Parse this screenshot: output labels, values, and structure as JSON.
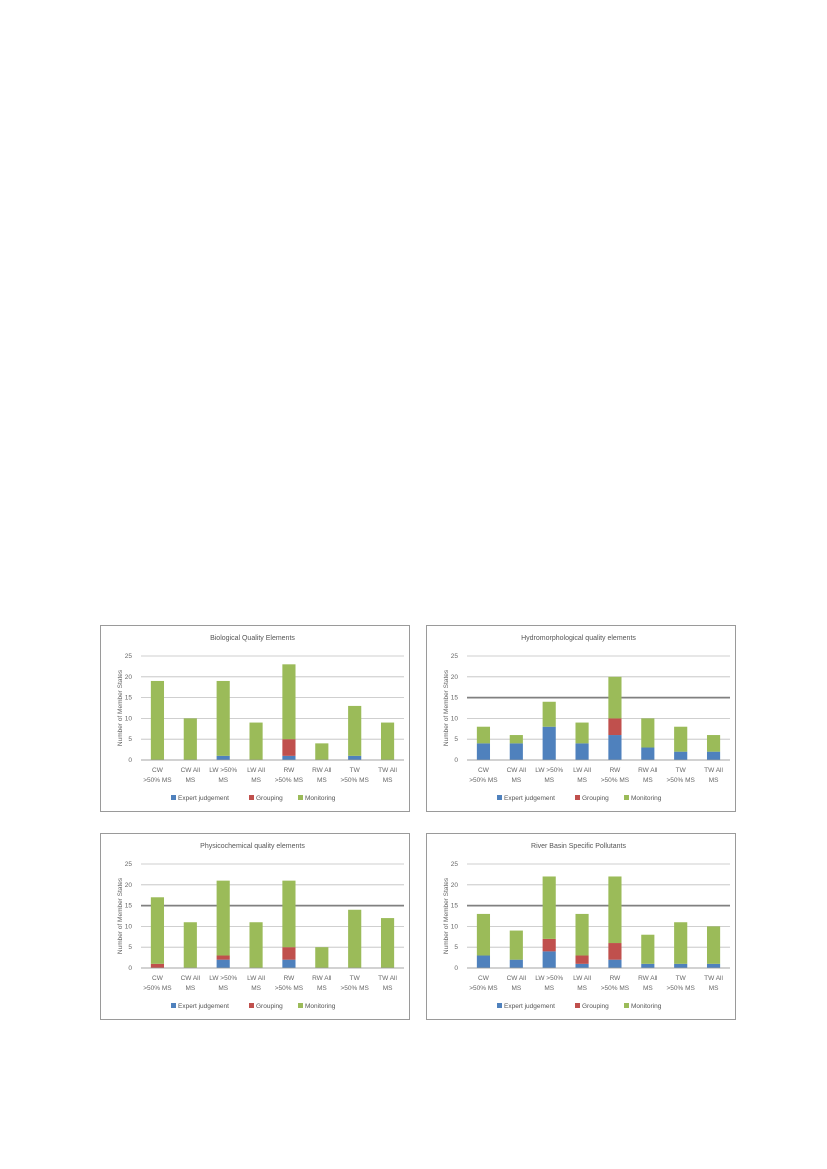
{
  "colors": {
    "expert": "#4f81bd",
    "grouping": "#c0504d",
    "monitoring": "#9bbb59",
    "grid": "#bfbfbf",
    "threshold": "#808080"
  },
  "chart_data": [
    {
      "type": "bar",
      "stacked": true,
      "title": "Biological Quality Elements",
      "ylabel": "Number of Member States",
      "ylim": [
        0,
        25
      ],
      "yticks": [
        0,
        5,
        10,
        15,
        20,
        25
      ],
      "threshold_line": null,
      "categories": [
        [
          "CW",
          ">50% MS"
        ],
        [
          "CW All",
          "MS"
        ],
        [
          "LW >50%",
          "MS"
        ],
        [
          "LW All",
          "MS"
        ],
        [
          "RW",
          ">50% MS"
        ],
        [
          "RW All",
          "MS"
        ],
        [
          "TW",
          ">50% MS"
        ],
        [
          "TW All",
          "MS"
        ]
      ],
      "series": [
        {
          "name": "Expert judgement",
          "values": [
            0,
            0,
            1,
            0,
            1,
            0,
            1,
            0
          ]
        },
        {
          "name": "Grouping",
          "values": [
            0,
            0,
            0,
            0,
            4,
            0,
            0,
            0
          ]
        },
        {
          "name": "Monitoring",
          "values": [
            19,
            10,
            18,
            9,
            18,
            4,
            12,
            9
          ]
        }
      ],
      "legend": "bottom"
    },
    {
      "type": "bar",
      "stacked": true,
      "title": "Hydromorphological quality elements",
      "ylabel": "Number of Member States",
      "ylim": [
        0,
        25
      ],
      "yticks": [
        0,
        5,
        10,
        15,
        20,
        25
      ],
      "threshold_line": 15,
      "categories": [
        [
          "CW",
          ">50% MS"
        ],
        [
          "CW All",
          "MS"
        ],
        [
          "LW >50%",
          "MS"
        ],
        [
          "LW All",
          "MS"
        ],
        [
          "RW",
          ">50% MS"
        ],
        [
          "RW All",
          "MS"
        ],
        [
          "TW",
          ">50% MS"
        ],
        [
          "TW All",
          "MS"
        ]
      ],
      "series": [
        {
          "name": "Expert judgement",
          "values": [
            4,
            4,
            8,
            4,
            6,
            3,
            2,
            2
          ]
        },
        {
          "name": "Grouping",
          "values": [
            0,
            0,
            0,
            0,
            4,
            0,
            0,
            0
          ]
        },
        {
          "name": "Monitoring",
          "values": [
            4,
            2,
            6,
            5,
            10,
            7,
            6,
            4
          ]
        }
      ],
      "legend": "bottom"
    },
    {
      "type": "bar",
      "stacked": true,
      "title": "Physicochemical quality elements",
      "ylabel": "Number of Member States",
      "ylim": [
        0,
        25
      ],
      "yticks": [
        0,
        5,
        10,
        15,
        20,
        25
      ],
      "threshold_line": 15,
      "categories": [
        [
          "CW",
          ">50% MS"
        ],
        [
          "CW All",
          "MS"
        ],
        [
          "LW >50%",
          "MS"
        ],
        [
          "LW All",
          "MS"
        ],
        [
          "RW",
          ">50% MS"
        ],
        [
          "RW All",
          "MS"
        ],
        [
          "TW",
          ">50% MS"
        ],
        [
          "TW All",
          "MS"
        ]
      ],
      "series": [
        {
          "name": "Expert judgement",
          "values": [
            0,
            0,
            2,
            0,
            2,
            0,
            0,
            0
          ]
        },
        {
          "name": "Grouping",
          "values": [
            1,
            0,
            1,
            0,
            3,
            0,
            0,
            0
          ]
        },
        {
          "name": "Monitoring",
          "values": [
            16,
            11,
            18,
            11,
            16,
            5,
            14,
            12
          ]
        }
      ],
      "legend": "bottom"
    },
    {
      "type": "bar",
      "stacked": true,
      "title": "River Basin Specific Pollutants",
      "ylabel": "Number of Member States",
      "ylim": [
        0,
        25
      ],
      "yticks": [
        0,
        5,
        10,
        15,
        20,
        25
      ],
      "threshold_line": 15,
      "categories": [
        [
          "CW",
          ">50% MS"
        ],
        [
          "CW All",
          "MS"
        ],
        [
          "LW >50%",
          "MS"
        ],
        [
          "LW All",
          "MS"
        ],
        [
          "RW",
          ">50% MS"
        ],
        [
          "RW All",
          "MS"
        ],
        [
          "TW",
          ">50% MS"
        ],
        [
          "TW All",
          "MS"
        ]
      ],
      "series": [
        {
          "name": "Expert judgement",
          "values": [
            3,
            2,
            4,
            1,
            2,
            1,
            1,
            1
          ]
        },
        {
          "name": "Grouping",
          "values": [
            0,
            0,
            3,
            2,
            4,
            0,
            0,
            0
          ]
        },
        {
          "name": "Monitoring",
          "values": [
            10,
            7,
            15,
            10,
            16,
            7,
            10,
            9
          ]
        }
      ],
      "legend": "bottom"
    }
  ]
}
